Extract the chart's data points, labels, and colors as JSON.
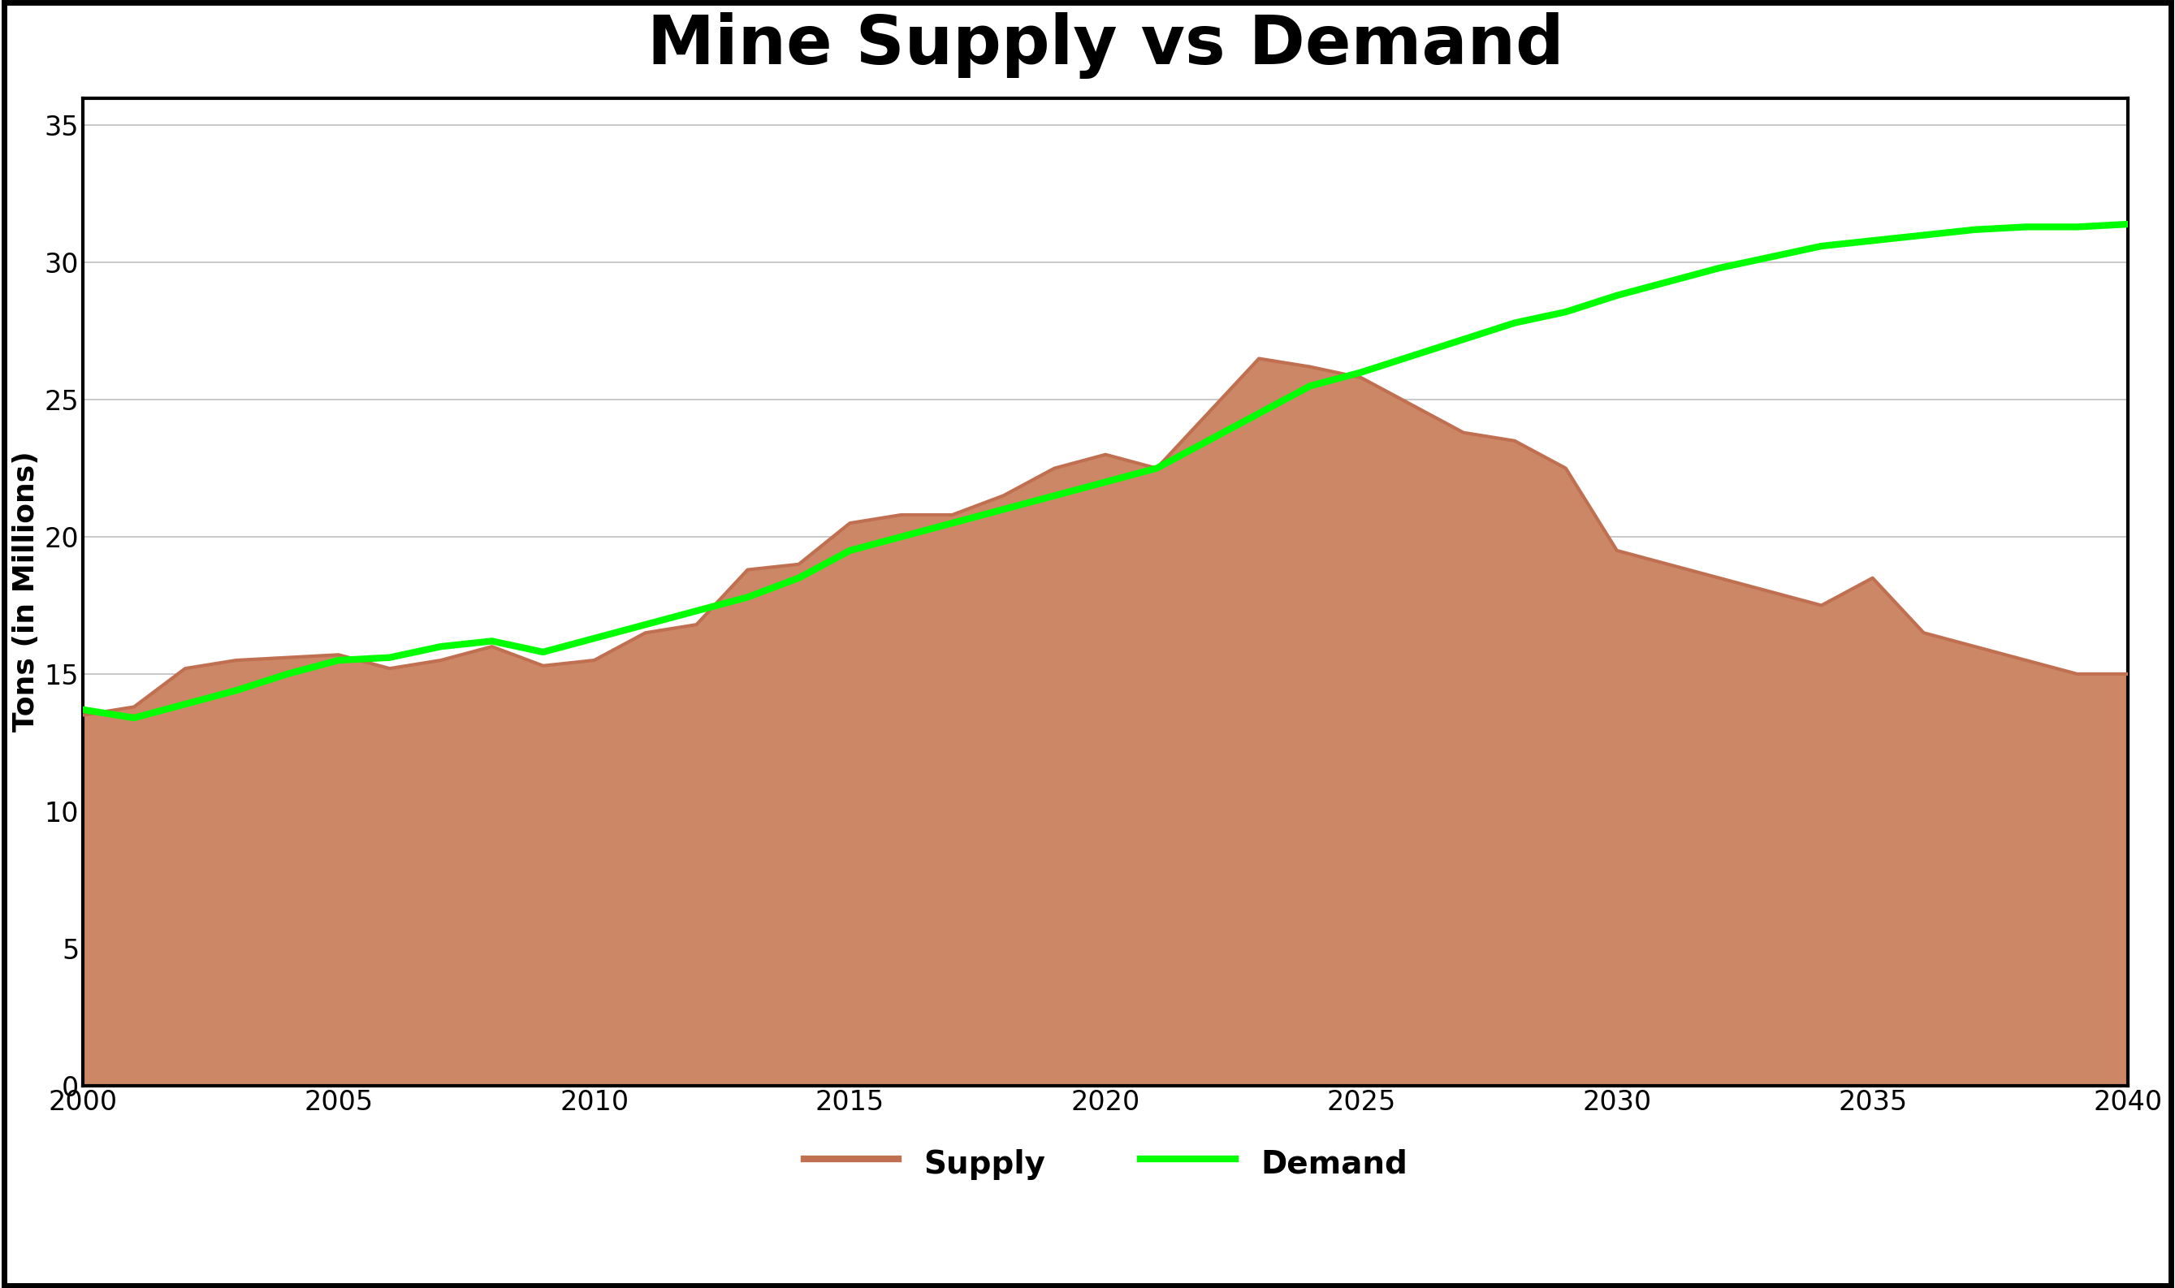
{
  "title": "Mine Supply vs Demand",
  "xlabel": "",
  "ylabel": "Tons (in Millions)",
  "xlim": [
    2000,
    2040
  ],
  "ylim": [
    0,
    36
  ],
  "yticks": [
    0,
    5,
    10,
    15,
    20,
    25,
    30,
    35
  ],
  "xticks": [
    2000,
    2005,
    2010,
    2015,
    2020,
    2025,
    2030,
    2035,
    2040
  ],
  "background_color": "#ffffff",
  "supply_color": "#c07050",
  "supply_fill_color": "#cc8866",
  "demand_color": "#00ff00",
  "supply_x": [
    2000,
    2001,
    2002,
    2003,
    2004,
    2005,
    2006,
    2007,
    2008,
    2009,
    2010,
    2011,
    2012,
    2013,
    2014,
    2015,
    2016,
    2017,
    2018,
    2019,
    2020,
    2021,
    2022,
    2023,
    2024,
    2025,
    2026,
    2027,
    2028,
    2029,
    2030,
    2031,
    2032,
    2033,
    2034,
    2035,
    2036,
    2037,
    2038,
    2039,
    2040
  ],
  "supply_y": [
    13.5,
    13.8,
    15.2,
    15.5,
    15.6,
    15.7,
    15.2,
    15.5,
    16.0,
    15.3,
    15.5,
    16.5,
    16.8,
    18.8,
    19.0,
    20.5,
    20.8,
    20.8,
    21.5,
    22.5,
    23.0,
    22.5,
    24.5,
    26.5,
    26.2,
    25.8,
    24.8,
    23.8,
    23.5,
    22.5,
    19.5,
    19.0,
    18.5,
    18.0,
    17.5,
    18.5,
    16.5,
    16.0,
    15.5,
    15.0,
    15.0
  ],
  "demand_x": [
    2000,
    2001,
    2002,
    2003,
    2004,
    2005,
    2006,
    2007,
    2008,
    2009,
    2010,
    2011,
    2012,
    2013,
    2014,
    2015,
    2016,
    2017,
    2018,
    2019,
    2020,
    2021,
    2022,
    2023,
    2024,
    2025,
    2026,
    2027,
    2028,
    2029,
    2030,
    2031,
    2032,
    2033,
    2034,
    2035,
    2036,
    2037,
    2038,
    2039,
    2040
  ],
  "demand_y": [
    13.7,
    13.4,
    13.9,
    14.4,
    15.0,
    15.5,
    15.6,
    16.0,
    16.2,
    15.8,
    16.3,
    16.8,
    17.3,
    17.8,
    18.5,
    19.5,
    20.0,
    20.5,
    21.0,
    21.5,
    22.0,
    22.5,
    23.5,
    24.5,
    25.5,
    26.0,
    26.6,
    27.2,
    27.8,
    28.2,
    28.8,
    29.3,
    29.8,
    30.2,
    30.6,
    30.8,
    31.0,
    31.2,
    31.3,
    31.3,
    31.4
  ],
  "title_fontsize": 60,
  "label_fontsize": 26,
  "tick_fontsize": 24,
  "legend_fontsize": 28,
  "supply_linewidth": 3,
  "demand_linewidth": 6,
  "grid_color": "#c0c0c0",
  "border_color": "#000000",
  "border_linewidth": 3,
  "outer_border_linewidth": 4
}
